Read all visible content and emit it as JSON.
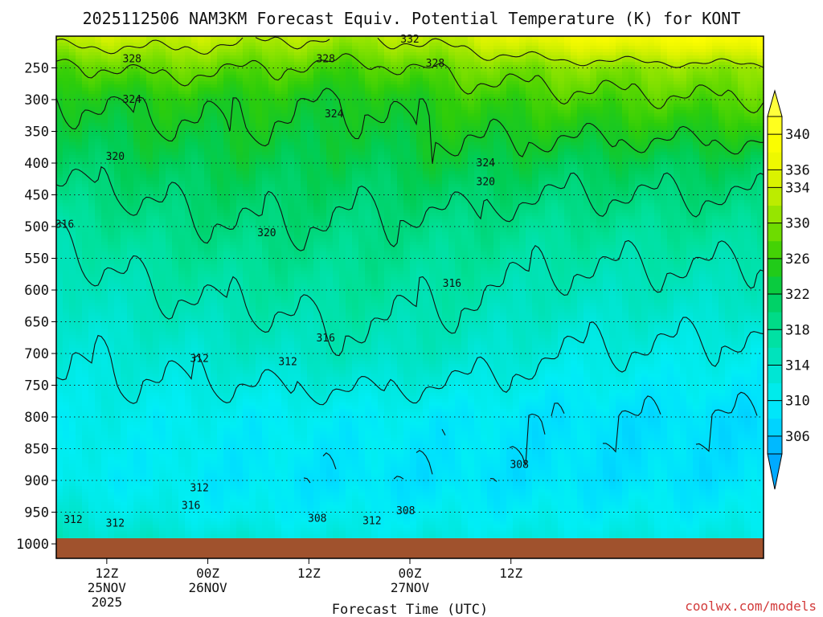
{
  "chart_data": {
    "type": "heatmap",
    "title": "2025112506 NAM3KM Forecast Equiv. Potential Temperature (K) for KONT",
    "xlabel": "Forecast Time (UTC)",
    "ylabel": "",
    "x_hours": [
      0,
      84
    ],
    "x_ticks": [
      {
        "hour": 6,
        "lines": [
          "12Z",
          "25NOV",
          "2025"
        ]
      },
      {
        "hour": 18,
        "lines": [
          "00Z",
          "26NOV"
        ]
      },
      {
        "hour": 30,
        "lines": [
          "12Z"
        ]
      },
      {
        "hour": 42,
        "lines": [
          "00Z",
          "27NOV"
        ]
      },
      {
        "hour": 54,
        "lines": [
          "12Z"
        ]
      }
    ],
    "y_ticks": [
      250,
      300,
      350,
      400,
      450,
      500,
      550,
      600,
      650,
      700,
      750,
      800,
      850,
      900,
      950,
      1000
    ],
    "ylim": [
      200,
      1017
    ],
    "colorbar": {
      "min": 304,
      "max": 342,
      "step": 2,
      "labels": [
        340,
        336,
        334,
        330,
        326,
        322,
        318,
        314,
        310,
        306
      ],
      "extend": "both"
    },
    "contours": [
      {
        "value": 332,
        "label": "332"
      },
      {
        "value": 328,
        "label": "328"
      },
      {
        "value": 324,
        "label": "324"
      },
      {
        "value": 320,
        "label": "320"
      },
      {
        "value": 316,
        "label": "316"
      },
      {
        "value": 312,
        "label": "312"
      },
      {
        "value": 308,
        "label": "308"
      }
    ],
    "contour_labels": [
      {
        "text": "332",
        "hour": 42.0,
        "p": 205
      },
      {
        "text": "328",
        "hour": 9.0,
        "p": 236
      },
      {
        "text": "328",
        "hour": 32.0,
        "p": 236
      },
      {
        "text": "328",
        "hour": 45.0,
        "p": 243
      },
      {
        "text": "324",
        "hour": 9.0,
        "p": 300
      },
      {
        "text": "324",
        "hour": 33.0,
        "p": 323
      },
      {
        "text": "324",
        "hour": 51.0,
        "p": 400
      },
      {
        "text": "320",
        "hour": 7.0,
        "p": 390
      },
      {
        "text": "320",
        "hour": 51.0,
        "p": 430
      },
      {
        "text": "320",
        "hour": 25.0,
        "p": 510
      },
      {
        "text": "316",
        "hour": 1.0,
        "p": 497
      },
      {
        "text": "316",
        "hour": 47.0,
        "p": 590
      },
      {
        "text": "316",
        "hour": 32.0,
        "p": 676
      },
      {
        "text": "312",
        "hour": 17.0,
        "p": 708
      },
      {
        "text": "312",
        "hour": 27.5,
        "p": 713
      },
      {
        "text": "312",
        "hour": 17.0,
        "p": 912
      },
      {
        "text": "316",
        "hour": 16.0,
        "p": 940
      },
      {
        "text": "312",
        "hour": 2.0,
        "p": 962
      },
      {
        "text": "312",
        "hour": 7.0,
        "p": 968
      },
      {
        "text": "308",
        "hour": 31.0,
        "p": 960
      },
      {
        "text": "308",
        "hour": 41.5,
        "p": 948
      },
      {
        "text": "312",
        "hour": 37.5,
        "p": 964
      },
      {
        "text": "308",
        "hour": 55.0,
        "p": 875
      }
    ],
    "profiles": [
      {
        "hour": 0,
        "theta": [
          [
            200,
            334
          ],
          [
            250,
            327
          ],
          [
            300,
            324
          ],
          [
            400,
            321
          ],
          [
            500,
            317
          ],
          [
            600,
            314
          ],
          [
            700,
            312.5
          ],
          [
            800,
            311
          ],
          [
            900,
            310
          ],
          [
            950,
            313
          ],
          [
            1000,
            315
          ]
        ]
      },
      {
        "hour": 12,
        "theta": [
          [
            200,
            334
          ],
          [
            250,
            329
          ],
          [
            300,
            325
          ],
          [
            400,
            322
          ],
          [
            500,
            319
          ],
          [
            600,
            316
          ],
          [
            700,
            313
          ],
          [
            800,
            310.5
          ],
          [
            900,
            310
          ],
          [
            950,
            311
          ],
          [
            1000,
            314
          ]
        ]
      },
      {
        "hour": 24,
        "theta": [
          [
            200,
            333
          ],
          [
            250,
            328
          ],
          [
            300,
            325
          ],
          [
            400,
            322.5
          ],
          [
            500,
            320
          ],
          [
            600,
            317
          ],
          [
            700,
            314
          ],
          [
            800,
            310
          ],
          [
            900,
            309
          ],
          [
            950,
            310
          ],
          [
            1000,
            313
          ]
        ]
      },
      {
        "hour": 36,
        "theta": [
          [
            200,
            332
          ],
          [
            250,
            327
          ],
          [
            300,
            324
          ],
          [
            400,
            322
          ],
          [
            500,
            319.5
          ],
          [
            600,
            317.5
          ],
          [
            700,
            315
          ],
          [
            800,
            310
          ],
          [
            900,
            308.5
          ],
          [
            950,
            310
          ],
          [
            1000,
            312
          ]
        ]
      },
      {
        "hour": 48,
        "theta": [
          [
            200,
            334
          ],
          [
            250,
            329
          ],
          [
            300,
            326
          ],
          [
            400,
            323
          ],
          [
            500,
            319
          ],
          [
            600,
            316.5
          ],
          [
            700,
            314
          ],
          [
            800,
            309.5
          ],
          [
            900,
            308.5
          ],
          [
            950,
            310
          ],
          [
            1000,
            312
          ]
        ]
      },
      {
        "hour": 60,
        "theta": [
          [
            200,
            338
          ],
          [
            250,
            330
          ],
          [
            300,
            327
          ],
          [
            400,
            322
          ],
          [
            500,
            318
          ],
          [
            600,
            315
          ],
          [
            700,
            312
          ],
          [
            800,
            308.5
          ],
          [
            900,
            308.5
          ],
          [
            950,
            310
          ],
          [
            1000,
            312
          ]
        ]
      },
      {
        "hour": 84,
        "theta": [
          [
            200,
            340
          ],
          [
            250,
            331
          ],
          [
            300,
            328
          ],
          [
            400,
            322
          ],
          [
            500,
            318
          ],
          [
            600,
            314.5
          ],
          [
            700,
            311
          ],
          [
            800,
            308
          ],
          [
            900,
            308.5
          ],
          [
            950,
            310
          ],
          [
            1000,
            312
          ]
        ]
      }
    ],
    "ground_color": "#a0522d"
  },
  "watermark": "coolwx.com/models"
}
